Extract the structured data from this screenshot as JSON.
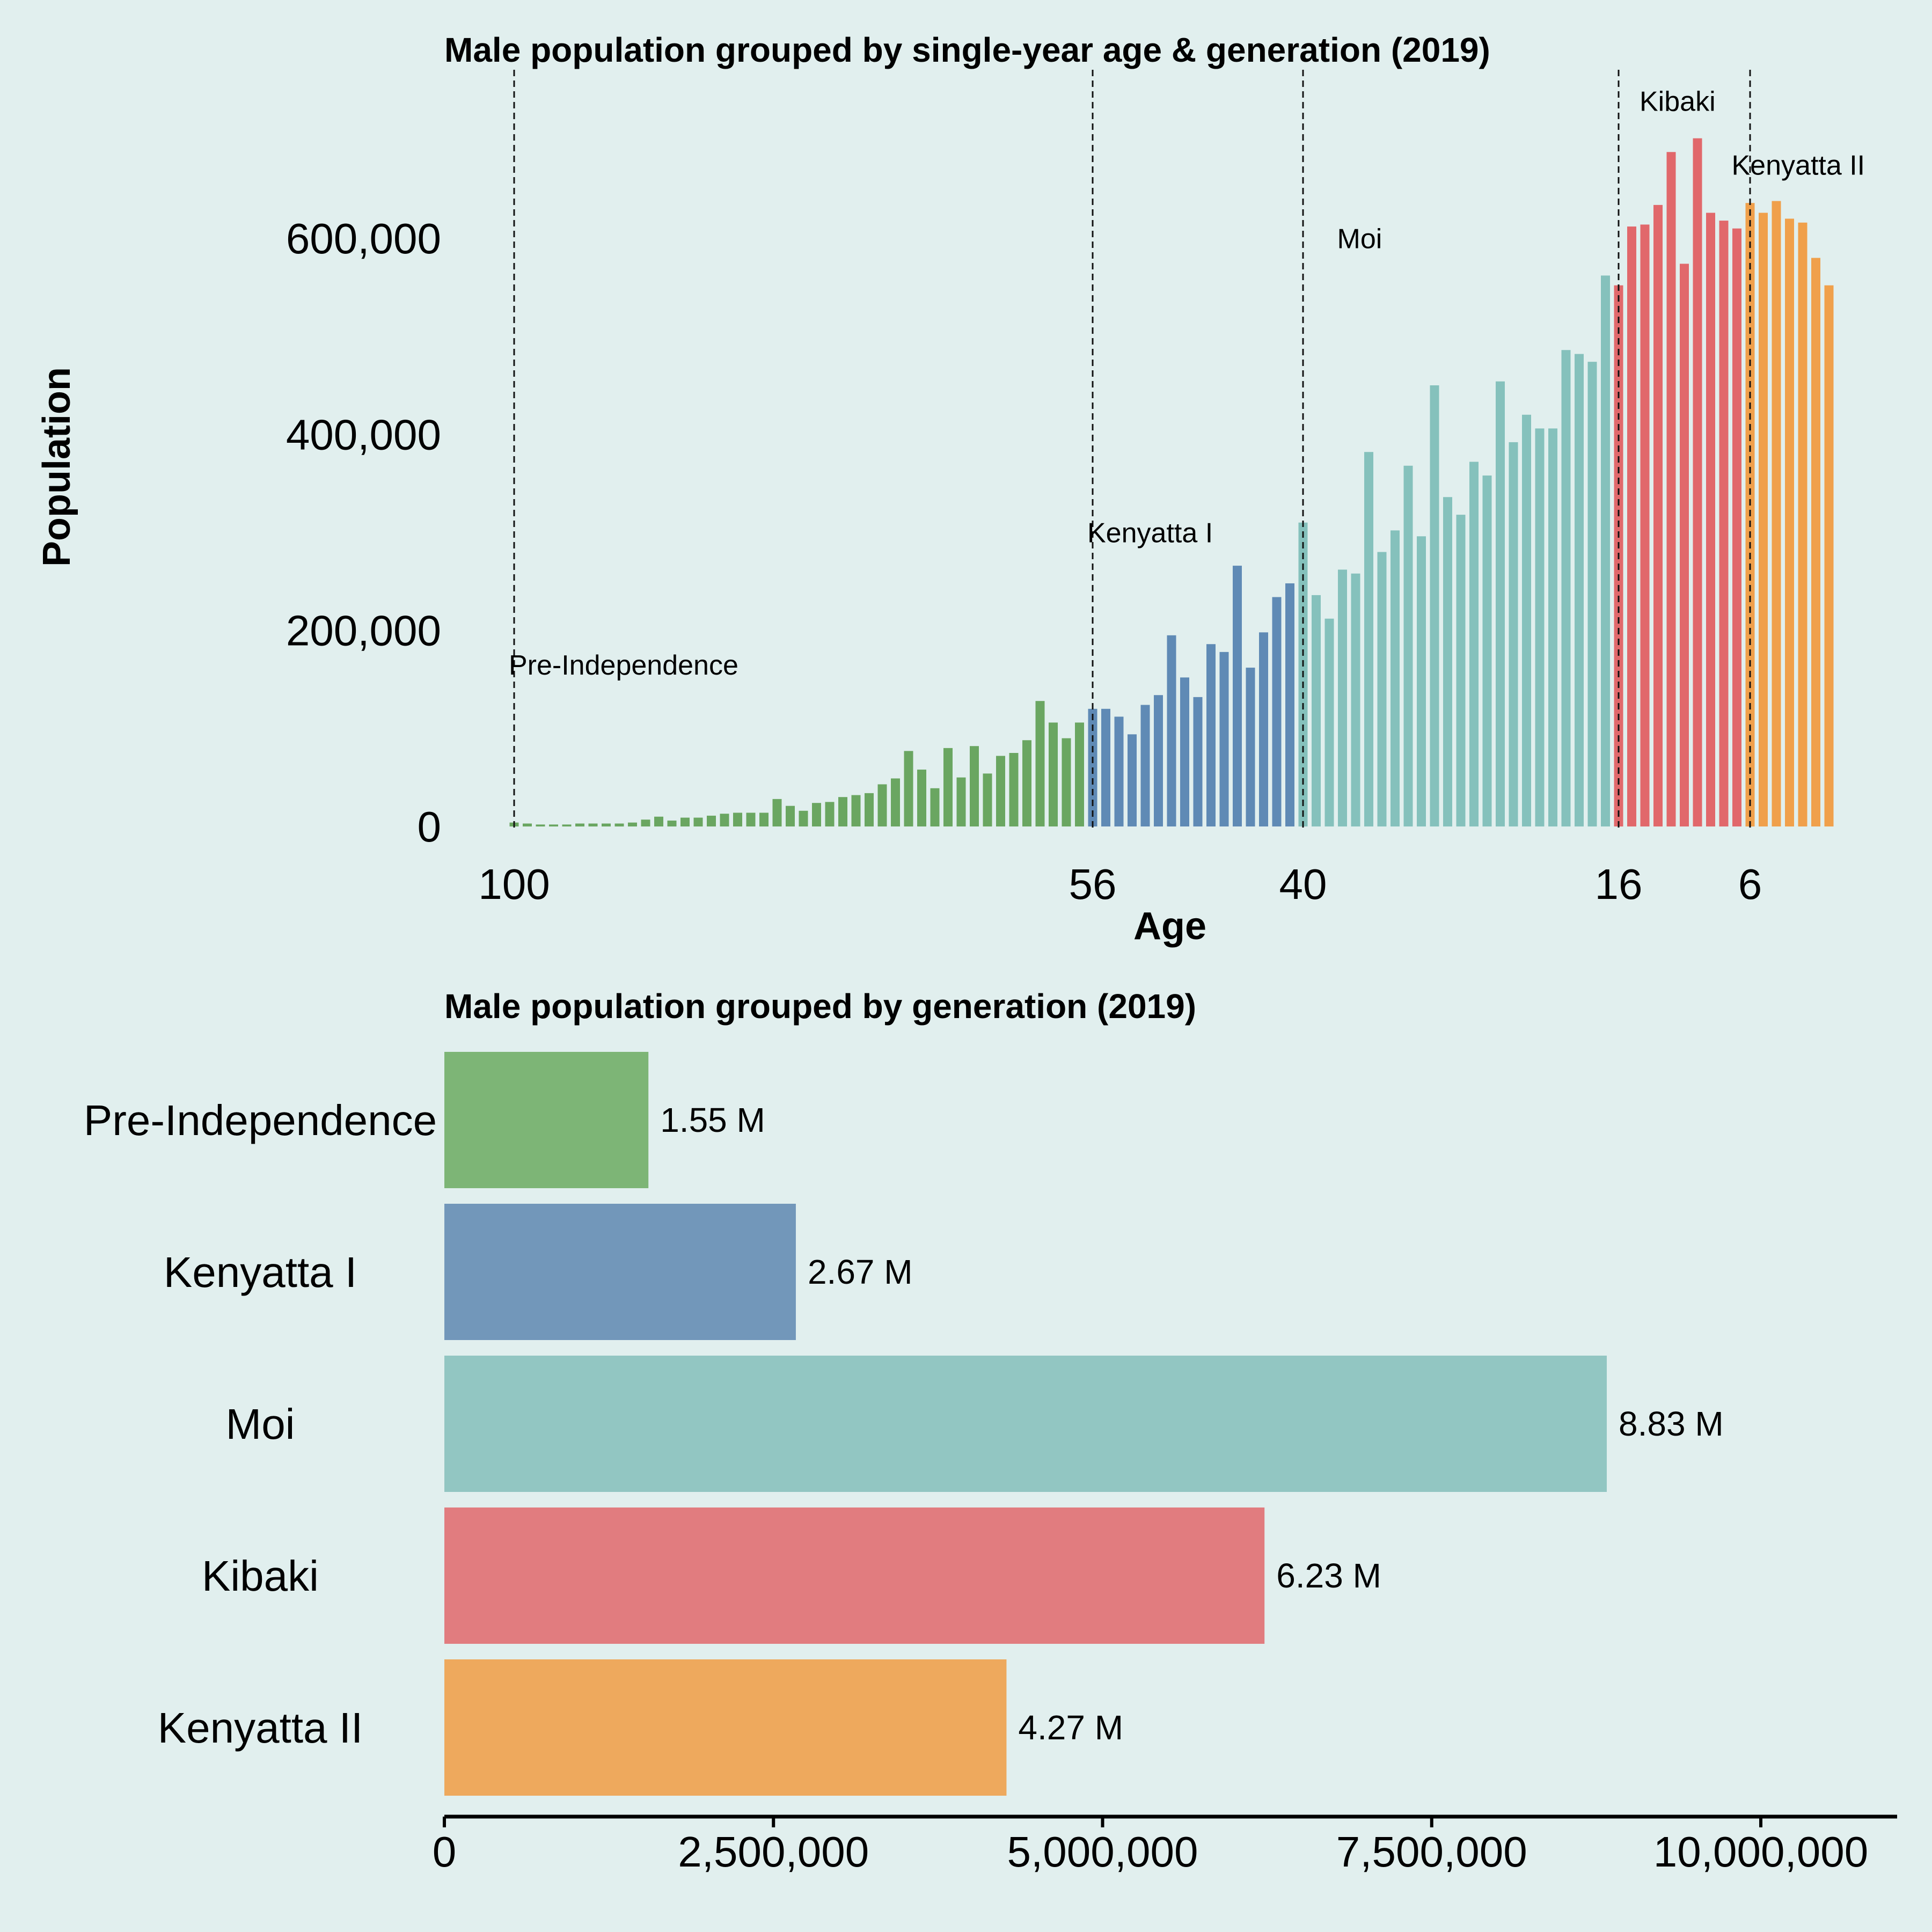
{
  "chart_data": [
    {
      "type": "bar",
      "title": "Male population grouped by single-year age & generation (2019)",
      "xlabel": "Age",
      "ylabel": "Population",
      "x_ticks": [
        100,
        56,
        40,
        16,
        6
      ],
      "y_ticks": [
        "0",
        "200,000",
        "400,000",
        "600,000"
      ],
      "ylim": [
        0,
        700000
      ],
      "x_order": "descending",
      "grid": false,
      "divider_ages": [
        100,
        56,
        40,
        16,
        6
      ],
      "generations": [
        {
          "name": "Pre-Independence",
          "color": "#6aa661",
          "label_age": 100,
          "label_value": 155000
        },
        {
          "name": "Kenyatta I",
          "color": "#5f8ab5",
          "label_age": 56,
          "label_value": 290000
        },
        {
          "name": "Moi",
          "color": "#85c1bc",
          "label_age": 37,
          "label_value": 590000
        },
        {
          "name": "Kibaki",
          "color": "#e1686b",
          "label_age": 14,
          "label_value": 730000
        },
        {
          "name": "Kenyatta II",
          "color": "#f0a04b",
          "label_age": 7,
          "label_value": 665000
        }
      ],
      "bars": [
        {
          "age": 100,
          "value": 4000,
          "generation": "Pre-Independence"
        },
        {
          "age": 99,
          "value": 3000,
          "generation": "Pre-Independence"
        },
        {
          "age": 98,
          "value": 2000,
          "generation": "Pre-Independence"
        },
        {
          "age": 97,
          "value": 2000,
          "generation": "Pre-Independence"
        },
        {
          "age": 96,
          "value": 2000,
          "generation": "Pre-Independence"
        },
        {
          "age": 95,
          "value": 3000,
          "generation": "Pre-Independence"
        },
        {
          "age": 94,
          "value": 3000,
          "generation": "Pre-Independence"
        },
        {
          "age": 93,
          "value": 3000,
          "generation": "Pre-Independence"
        },
        {
          "age": 92,
          "value": 3000,
          "generation": "Pre-Independence"
        },
        {
          "age": 91,
          "value": 4000,
          "generation": "Pre-Independence"
        },
        {
          "age": 90,
          "value": 7000,
          "generation": "Pre-Independence"
        },
        {
          "age": 89,
          "value": 10000,
          "generation": "Pre-Independence"
        },
        {
          "age": 88,
          "value": 6000,
          "generation": "Pre-Independence"
        },
        {
          "age": 87,
          "value": 9000,
          "generation": "Pre-Independence"
        },
        {
          "age": 86,
          "value": 9000,
          "generation": "Pre-Independence"
        },
        {
          "age": 85,
          "value": 11000,
          "generation": "Pre-Independence"
        },
        {
          "age": 84,
          "value": 13000,
          "generation": "Pre-Independence"
        },
        {
          "age": 83,
          "value": 14000,
          "generation": "Pre-Independence"
        },
        {
          "age": 82,
          "value": 14000,
          "generation": "Pre-Independence"
        },
        {
          "age": 81,
          "value": 14000,
          "generation": "Pre-Independence"
        },
        {
          "age": 80,
          "value": 28000,
          "generation": "Pre-Independence"
        },
        {
          "age": 79,
          "value": 21000,
          "generation": "Pre-Independence"
        },
        {
          "age": 78,
          "value": 16000,
          "generation": "Pre-Independence"
        },
        {
          "age": 77,
          "value": 24000,
          "generation": "Pre-Independence"
        },
        {
          "age": 76,
          "value": 25000,
          "generation": "Pre-Independence"
        },
        {
          "age": 75,
          "value": 30000,
          "generation": "Pre-Independence"
        },
        {
          "age": 74,
          "value": 32000,
          "generation": "Pre-Independence"
        },
        {
          "age": 73,
          "value": 34000,
          "generation": "Pre-Independence"
        },
        {
          "age": 72,
          "value": 43000,
          "generation": "Pre-Independence"
        },
        {
          "age": 71,
          "value": 49000,
          "generation": "Pre-Independence"
        },
        {
          "age": 70,
          "value": 77000,
          "generation": "Pre-Independence"
        },
        {
          "age": 69,
          "value": 58000,
          "generation": "Pre-Independence"
        },
        {
          "age": 68,
          "value": 39000,
          "generation": "Pre-Independence"
        },
        {
          "age": 67,
          "value": 80000,
          "generation": "Pre-Independence"
        },
        {
          "age": 66,
          "value": 50000,
          "generation": "Pre-Independence"
        },
        {
          "age": 65,
          "value": 82000,
          "generation": "Pre-Independence"
        },
        {
          "age": 64,
          "value": 54000,
          "generation": "Pre-Independence"
        },
        {
          "age": 63,
          "value": 72000,
          "generation": "Pre-Independence"
        },
        {
          "age": 62,
          "value": 75000,
          "generation": "Pre-Independence"
        },
        {
          "age": 61,
          "value": 88000,
          "generation": "Pre-Independence"
        },
        {
          "age": 60,
          "value": 128000,
          "generation": "Pre-Independence"
        },
        {
          "age": 59,
          "value": 106000,
          "generation": "Pre-Independence"
        },
        {
          "age": 58,
          "value": 90000,
          "generation": "Pre-Independence"
        },
        {
          "age": 57,
          "value": 106000,
          "generation": "Pre-Independence"
        },
        {
          "age": 56,
          "value": 120000,
          "generation": "Kenyatta I"
        },
        {
          "age": 55,
          "value": 120000,
          "generation": "Kenyatta I"
        },
        {
          "age": 54,
          "value": 112000,
          "generation": "Kenyatta I"
        },
        {
          "age": 53,
          "value": 94000,
          "generation": "Kenyatta I"
        },
        {
          "age": 52,
          "value": 124000,
          "generation": "Kenyatta I"
        },
        {
          "age": 51,
          "value": 134000,
          "generation": "Kenyatta I"
        },
        {
          "age": 50,
          "value": 195000,
          "generation": "Kenyatta I"
        },
        {
          "age": 49,
          "value": 152000,
          "generation": "Kenyatta I"
        },
        {
          "age": 48,
          "value": 132000,
          "generation": "Kenyatta I"
        },
        {
          "age": 47,
          "value": 186000,
          "generation": "Kenyatta I"
        },
        {
          "age": 46,
          "value": 178000,
          "generation": "Kenyatta I"
        },
        {
          "age": 45,
          "value": 266000,
          "generation": "Kenyatta I"
        },
        {
          "age": 44,
          "value": 162000,
          "generation": "Kenyatta I"
        },
        {
          "age": 43,
          "value": 198000,
          "generation": "Kenyatta I"
        },
        {
          "age": 42,
          "value": 234000,
          "generation": "Kenyatta I"
        },
        {
          "age": 41,
          "value": 248000,
          "generation": "Kenyatta I"
        },
        {
          "age": 40,
          "value": 310000,
          "generation": "Moi"
        },
        {
          "age": 39,
          "value": 236000,
          "generation": "Moi"
        },
        {
          "age": 38,
          "value": 212000,
          "generation": "Moi"
        },
        {
          "age": 37,
          "value": 262000,
          "generation": "Moi"
        },
        {
          "age": 36,
          "value": 258000,
          "generation": "Moi"
        },
        {
          "age": 35,
          "value": 382000,
          "generation": "Moi"
        },
        {
          "age": 34,
          "value": 280000,
          "generation": "Moi"
        },
        {
          "age": 33,
          "value": 302000,
          "generation": "Moi"
        },
        {
          "age": 32,
          "value": 368000,
          "generation": "Moi"
        },
        {
          "age": 31,
          "value": 296000,
          "generation": "Moi"
        },
        {
          "age": 30,
          "value": 450000,
          "generation": "Moi"
        },
        {
          "age": 29,
          "value": 336000,
          "generation": "Moi"
        },
        {
          "age": 28,
          "value": 318000,
          "generation": "Moi"
        },
        {
          "age": 27,
          "value": 372000,
          "generation": "Moi"
        },
        {
          "age": 26,
          "value": 358000,
          "generation": "Moi"
        },
        {
          "age": 25,
          "value": 454000,
          "generation": "Moi"
        },
        {
          "age": 24,
          "value": 392000,
          "generation": "Moi"
        },
        {
          "age": 23,
          "value": 420000,
          "generation": "Moi"
        },
        {
          "age": 22,
          "value": 406000,
          "generation": "Moi"
        },
        {
          "age": 21,
          "value": 406000,
          "generation": "Moi"
        },
        {
          "age": 20,
          "value": 486000,
          "generation": "Moi"
        },
        {
          "age": 19,
          "value": 482000,
          "generation": "Moi"
        },
        {
          "age": 18,
          "value": 474000,
          "generation": "Moi"
        },
        {
          "age": 17,
          "value": 562000,
          "generation": "Moi"
        },
        {
          "age": 16,
          "value": 552000,
          "generation": "Kibaki"
        },
        {
          "age": 15,
          "value": 612000,
          "generation": "Kibaki"
        },
        {
          "age": 14,
          "value": 614000,
          "generation": "Kibaki"
        },
        {
          "age": 13,
          "value": 634000,
          "generation": "Kibaki"
        },
        {
          "age": 12,
          "value": 688000,
          "generation": "Kibaki"
        },
        {
          "age": 11,
          "value": 574000,
          "generation": "Kibaki"
        },
        {
          "age": 10,
          "value": 702000,
          "generation": "Kibaki"
        },
        {
          "age": 9,
          "value": 626000,
          "generation": "Kibaki"
        },
        {
          "age": 8,
          "value": 618000,
          "generation": "Kibaki"
        },
        {
          "age": 7,
          "value": 610000,
          "generation": "Kibaki"
        },
        {
          "age": 6,
          "value": 636000,
          "generation": "Kenyatta II"
        },
        {
          "age": 5,
          "value": 626000,
          "generation": "Kenyatta II"
        },
        {
          "age": 4,
          "value": 638000,
          "generation": "Kenyatta II"
        },
        {
          "age": 3,
          "value": 620000,
          "generation": "Kenyatta II"
        },
        {
          "age": 2,
          "value": 616000,
          "generation": "Kenyatta II"
        },
        {
          "age": 1,
          "value": 580000,
          "generation": "Kenyatta II"
        },
        {
          "age": 0,
          "value": 552000,
          "generation": "Kenyatta II"
        }
      ]
    },
    {
      "type": "bar",
      "orientation": "horizontal",
      "title": "Male population grouped by generation (2019)",
      "categories": [
        "Pre-Independence",
        "Kenyatta I",
        "Moi",
        "Kibaki",
        "Kenyatta II"
      ],
      "values": [
        1550000,
        2670000,
        8830000,
        6230000,
        4270000
      ],
      "value_labels": [
        "1.55 M",
        "2.67 M",
        "8.83 M",
        "6.23 M",
        "4.27 M"
      ],
      "colors": [
        "#7db576",
        "#7297ba",
        "#92c6c2",
        "#e17c7f",
        "#eea95d"
      ],
      "x_ticks": [
        "0",
        "2,500,000",
        "5,000,000",
        "7,500,000",
        "10,000,000"
      ],
      "xlim": [
        0,
        11000000
      ],
      "grid": false
    }
  ]
}
